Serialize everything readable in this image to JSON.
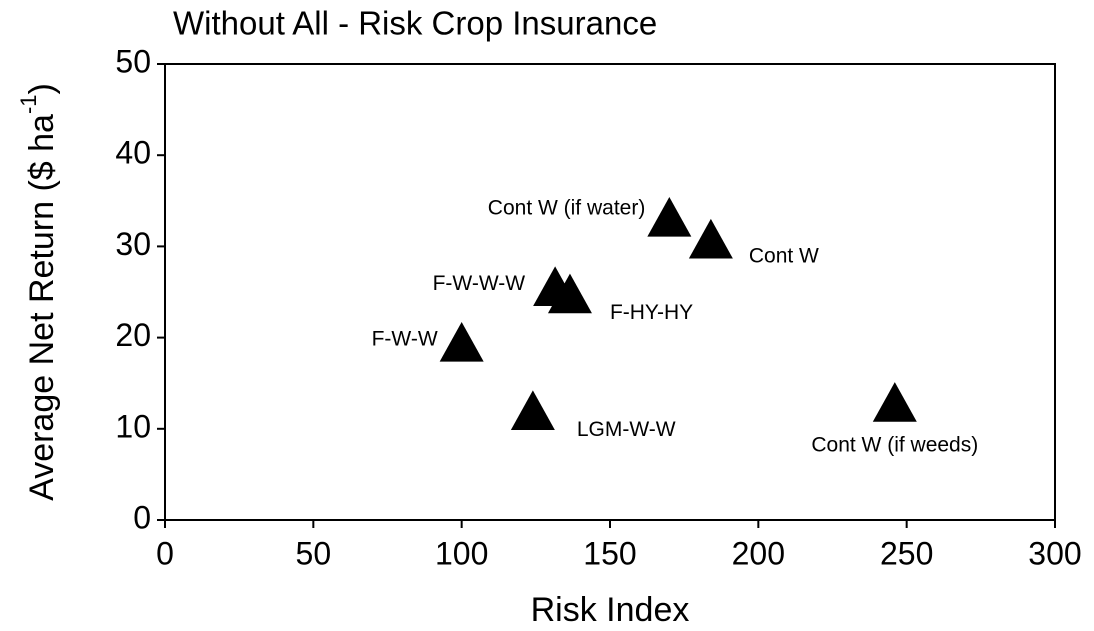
{
  "chart_data": {
    "type": "scatter",
    "title": "Without All - Risk Crop Insurance",
    "xlabel": "Risk Index",
    "ylabel": [
      "Average Net Return ($ ha",
      "-1",
      ")"
    ],
    "x": [
      100,
      124,
      131.5,
      136.5,
      170,
      184,
      246
    ],
    "values": [
      19.3,
      11.8,
      25.4,
      24.6,
      33,
      30.6,
      12.7
    ],
    "labels": [
      "F-W-W",
      "LGM-W-W",
      "F-W-W-W",
      "F-HY-HY",
      "Cont W (if water)",
      "Cont W",
      "Cont W (if weeds)"
    ],
    "color": "#000000",
    "marker": "triangle",
    "xlim": [
      0,
      300
    ],
    "xticks": [
      0,
      50,
      100,
      150,
      200,
      250,
      300
    ],
    "ylim": [
      0,
      50
    ],
    "yticks": [
      0,
      10,
      20,
      30,
      40,
      50
    ]
  }
}
